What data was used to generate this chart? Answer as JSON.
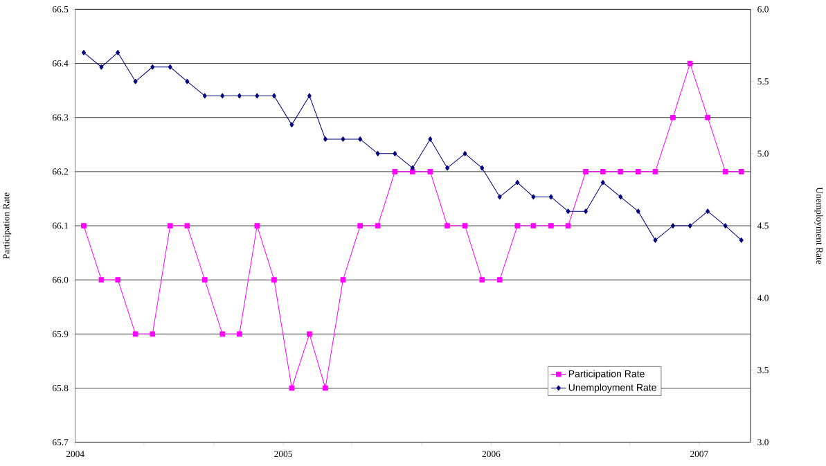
{
  "chart_data": {
    "type": "line",
    "ylabel": "Participation Rate",
    "y2label": "Unemployment Rate",
    "x": [
      "2004-01-16",
      "2004-02-16",
      "2004-03-16",
      "2004-04-16",
      "2004-05-16",
      "2004-06-16",
      "2004-07-16",
      "2004-08-16",
      "2004-09-16",
      "2004-10-16",
      "2004-11-16",
      "2004-12-16",
      "2005-01-16",
      "2005-02-16",
      "2005-03-16",
      "2005-04-16",
      "2005-05-16",
      "2005-06-16",
      "2005-07-16",
      "2005-08-16",
      "2005-09-16",
      "2005-10-16",
      "2005-11-16",
      "2005-12-16",
      "2006-01-16",
      "2006-02-16",
      "2006-03-16",
      "2006-04-16",
      "2006-05-16",
      "2006-06-16",
      "2006-07-16",
      "2006-08-16",
      "2006-09-16",
      "2006-10-16",
      "2006-11-16",
      "2006-12-16",
      "2007-01-16",
      "2007-02-16",
      "2007-03-16"
    ],
    "series": [
      {
        "name": "Participation Rate",
        "color": "#ff00ff",
        "marker": "square",
        "values": [
          66.1,
          66.0,
          66.0,
          65.9,
          65.9,
          66.1,
          66.1,
          66.0,
          65.9,
          65.9,
          66.1,
          66.0,
          65.8,
          65.9,
          65.8,
          66.0,
          66.1,
          66.1,
          66.2,
          66.2,
          66.2,
          66.1,
          66.1,
          66.0,
          66.0,
          66.1,
          66.1,
          66.1,
          66.1,
          66.2,
          66.2,
          66.2,
          66.2,
          66.2,
          66.3,
          66.4,
          66.3,
          66.2,
          66.2
        ]
      },
      {
        "name": "Unemployment Rate",
        "color": "#000080",
        "marker": "diamond",
        "axis": "y2",
        "values": [
          5.7,
          5.6,
          5.7,
          5.5,
          5.6,
          5.6,
          5.5,
          5.4,
          5.4,
          5.4,
          5.4,
          5.4,
          5.2,
          5.4,
          5.1,
          5.1,
          5.1,
          5.0,
          5.0,
          4.9,
          5.1,
          4.9,
          5.0,
          4.9,
          4.7,
          4.8,
          4.7,
          4.7,
          4.6,
          4.6,
          4.8,
          4.7,
          4.6,
          4.4,
          4.5,
          4.5,
          4.6,
          4.5,
          4.4
        ]
      }
    ],
    "xlim": [
      "2004",
      "2007-04"
    ],
    "xticks": [
      {
        "value": "2004",
        "label": "2004"
      },
      {
        "value": "2004-05",
        "label": null
      },
      {
        "value": "2004-09",
        "label": null
      },
      {
        "value": "2005",
        "label": "2005"
      },
      {
        "value": "2005-05",
        "label": null
      },
      {
        "value": "2005-09",
        "label": null
      },
      {
        "value": "2006",
        "label": "2006"
      },
      {
        "value": "2006-05",
        "label": null
      },
      {
        "value": "2006-09",
        "label": null
      },
      {
        "value": "2007",
        "label": "2007"
      }
    ],
    "ylim": [
      65.7,
      66.5
    ],
    "yticks": [
      {
        "value": 65.7,
        "label": "65.7"
      },
      {
        "value": 65.8,
        "label": "65.8"
      },
      {
        "value": 65.9,
        "label": "65.9"
      },
      {
        "value": 66.0,
        "label": "66.0"
      },
      {
        "value": 66.1,
        "label": "66.1"
      },
      {
        "value": 66.2,
        "label": "66.2"
      },
      {
        "value": 66.3,
        "label": "66.3"
      },
      {
        "value": 66.4,
        "label": "66.4"
      },
      {
        "value": 66.5,
        "label": "66.5"
      }
    ],
    "y2lim": [
      3.0,
      6.0
    ],
    "y2ticks": [
      {
        "value": 3.0,
        "label": "3.0"
      },
      {
        "value": 3.5,
        "label": "3.5"
      },
      {
        "value": 4.0,
        "label": "4.0"
      },
      {
        "value": 4.5,
        "label": "4.5"
      },
      {
        "value": 5.0,
        "label": "5.0"
      },
      {
        "value": 5.5,
        "label": "5.5"
      },
      {
        "value": 6.0,
        "label": "6.0"
      }
    ],
    "grid": "y",
    "legend": "bottom right",
    "line_style": "solid"
  }
}
